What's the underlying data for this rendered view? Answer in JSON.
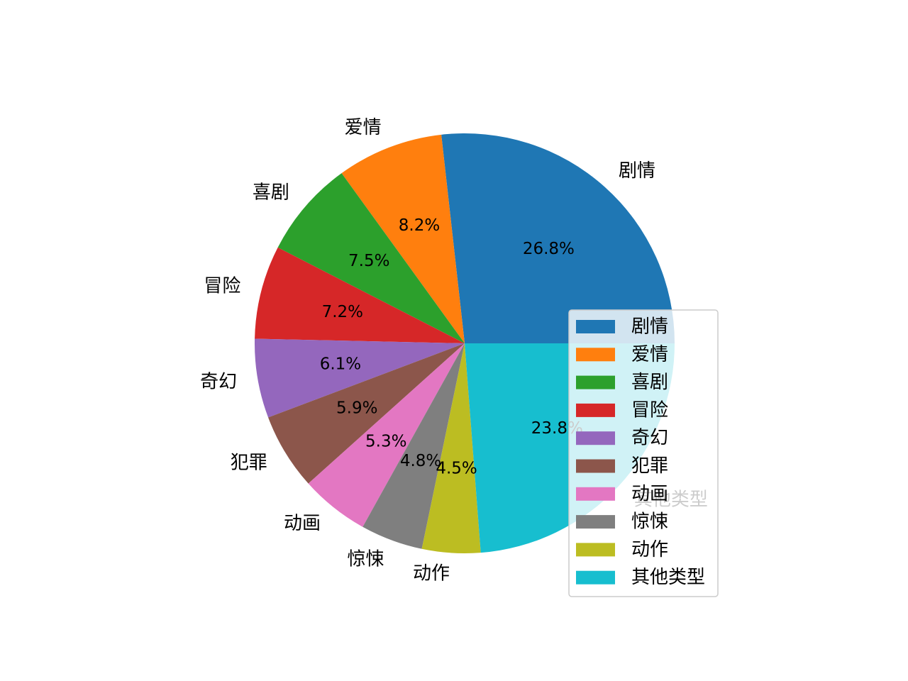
{
  "chart_data": {
    "type": "pie",
    "title": "",
    "start_angle_deg": 0,
    "direction": "counterclockwise",
    "legend_position": "lower-right",
    "slices": [
      {
        "label": "剧情",
        "value": 26.8,
        "pct_label": "26.8%",
        "color": "#1f77b4"
      },
      {
        "label": "爱情",
        "value": 8.2,
        "pct_label": "8.2%",
        "color": "#ff7f0e"
      },
      {
        "label": "喜剧",
        "value": 7.5,
        "pct_label": "7.5%",
        "color": "#2ca02c"
      },
      {
        "label": "冒险",
        "value": 7.2,
        "pct_label": "7.2%",
        "color": "#d62728"
      },
      {
        "label": "奇幻",
        "value": 6.1,
        "pct_label": "6.1%",
        "color": "#9467bd"
      },
      {
        "label": "犯罪",
        "value": 5.9,
        "pct_label": "5.9%",
        "color": "#8c564b"
      },
      {
        "label": "动画",
        "value": 5.3,
        "pct_label": "5.3%",
        "color": "#e377c2"
      },
      {
        "label": "惊悚",
        "value": 4.8,
        "pct_label": "4.8%",
        "color": "#7f7f7f"
      },
      {
        "label": "动作",
        "value": 4.5,
        "pct_label": "4.5%",
        "color": "#bcbd22"
      },
      {
        "label": "其他类型",
        "value": 23.8,
        "pct_label": "23.8%",
        "color": "#17becf"
      }
    ]
  }
}
